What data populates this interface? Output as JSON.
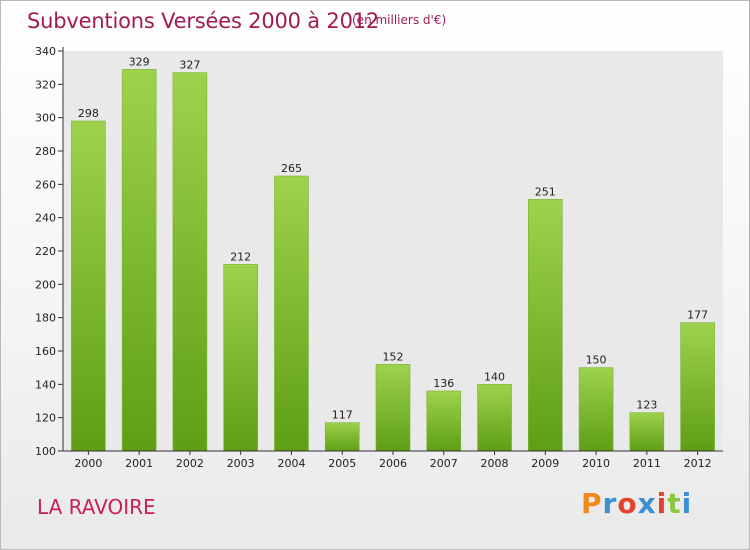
{
  "header": {
    "title": "Subventions Versées 2000 à 2012",
    "subtitle": "(en milliers d'€)"
  },
  "footer": {
    "commune": "LA RAVOIRE",
    "logo_text": "Proxiti"
  },
  "colors": {
    "bar_light": "#9ed24e",
    "bar_dark": "#5e9e16",
    "title": "#a21a52",
    "logo": [
      "#f08a1c",
      "#3c8fd4",
      "#e0442c",
      "#3c8fd4",
      "#e0442c",
      "#8cc63e",
      "#3c8fd4"
    ]
  },
  "chart_data": {
    "type": "bar",
    "title": "Subventions Versées 2000 à 2012",
    "subtitle": "(en milliers d'€)",
    "categories": [
      "2000",
      "2001",
      "2002",
      "2003",
      "2004",
      "2005",
      "2006",
      "2007",
      "2008",
      "2009",
      "2010",
      "2011",
      "2012"
    ],
    "values": [
      298,
      329,
      327,
      212,
      265,
      117,
      152,
      136,
      140,
      251,
      150,
      123,
      177
    ],
    "xlabel": "",
    "ylabel": "",
    "ylim": [
      100,
      340
    ],
    "yticks": [
      100,
      120,
      140,
      160,
      180,
      200,
      220,
      240,
      260,
      280,
      300,
      320,
      340
    ],
    "grid": false,
    "legend": "none"
  }
}
